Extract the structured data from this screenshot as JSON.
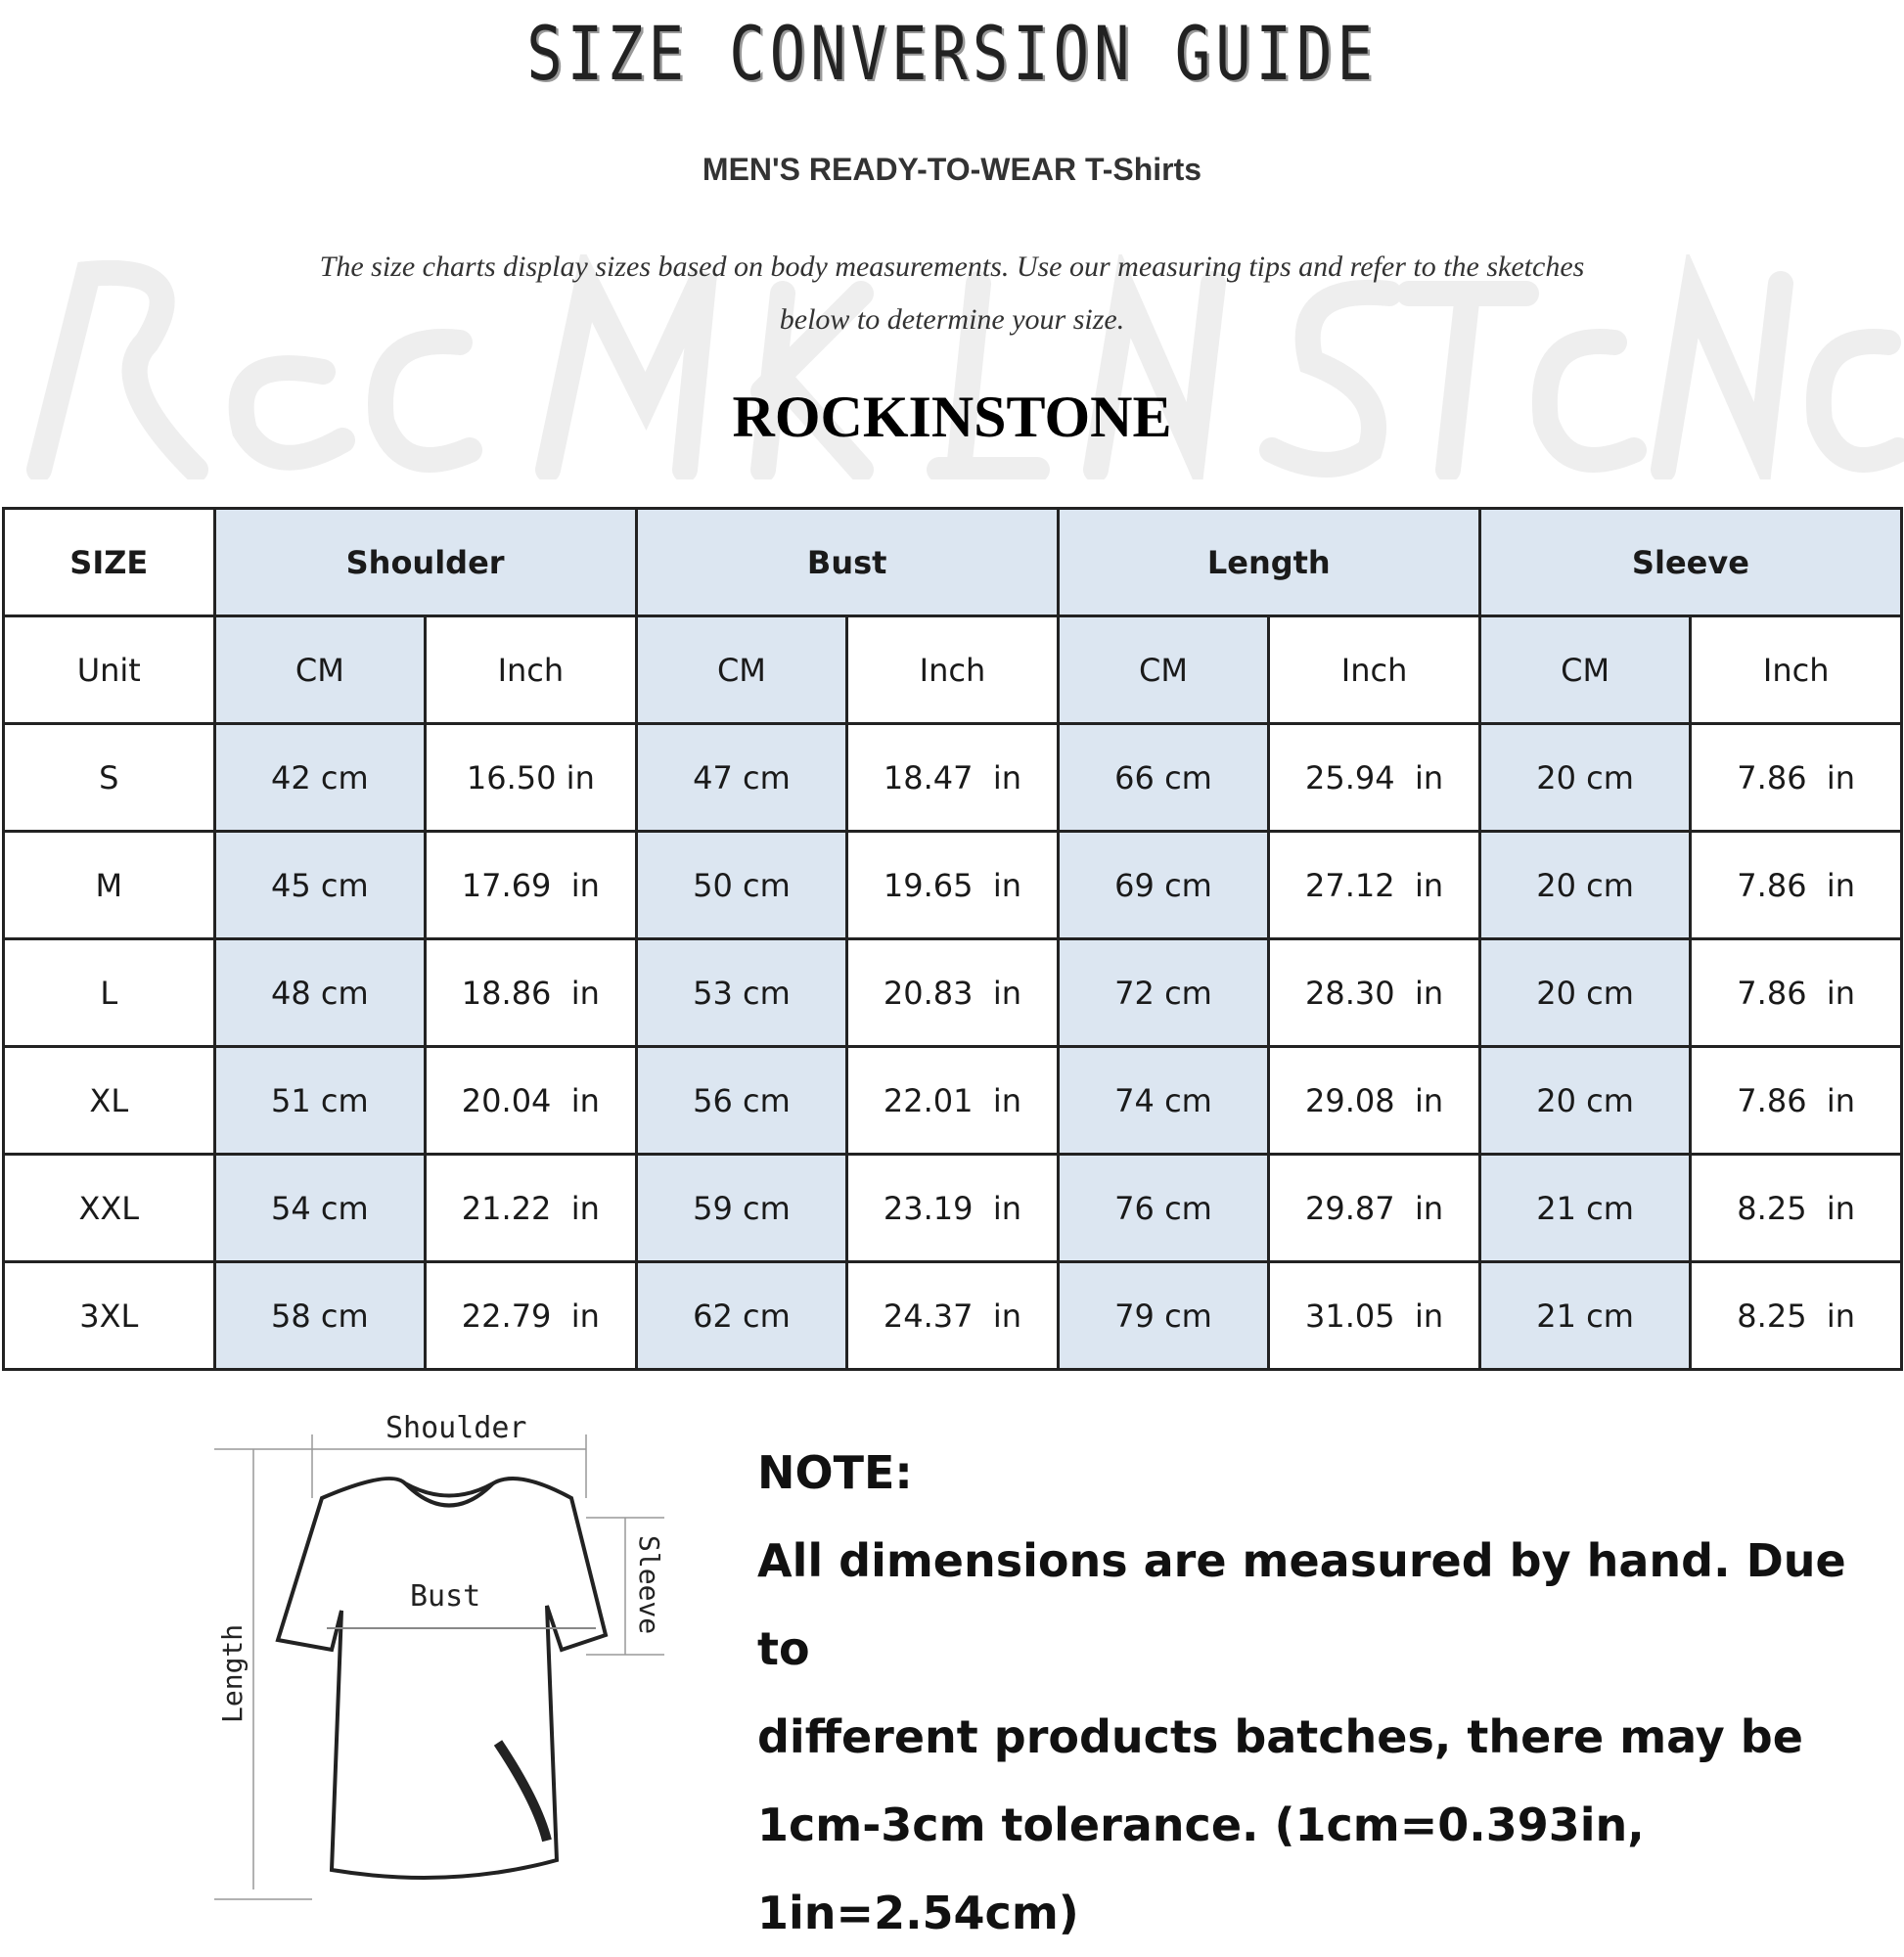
{
  "header": {
    "title": "SIZE CONVERSION GUIDE",
    "subtitle": "MEN'S READY-TO-WEAR T-Shirts",
    "description_line1": "The size charts display sizes based on body measurements. Use our measuring tips and refer to the sketches",
    "description_line2": "below to determine your size.",
    "brand": "ROCKINSTONE",
    "watermark": "RockInStone"
  },
  "table": {
    "header": [
      "SIZE",
      "Shoulder",
      "Bust",
      "Length",
      "Sleeve"
    ],
    "units": [
      "Unit",
      "CM",
      "Inch",
      "CM",
      "Inch",
      "CM",
      "Inch",
      "CM",
      "Inch"
    ],
    "rows": [
      [
        "S",
        "42 cm",
        "16.50 in",
        "47 cm",
        "18.47  in",
        "66 cm",
        "25.94  in",
        "20 cm",
        "7.86  in"
      ],
      [
        "M",
        "45 cm",
        "17.69  in",
        "50 cm",
        "19.65  in",
        "69 cm",
        "27.12  in",
        "20 cm",
        "7.86  in"
      ],
      [
        "L",
        "48 cm",
        "18.86  in",
        "53 cm",
        "20.83  in",
        "72 cm",
        "28.30  in",
        "20 cm",
        "7.86  in"
      ],
      [
        "XL",
        "51 cm",
        "20.04  in",
        "56 cm",
        "22.01  in",
        "74 cm",
        "29.08  in",
        "20 cm",
        "7.86  in"
      ],
      [
        "XXL",
        "54 cm",
        "21.22  in",
        "59 cm",
        "23.19  in",
        "76 cm",
        "29.87  in",
        "21 cm",
        "8.25  in"
      ],
      [
        "3XL",
        "58 cm",
        "22.79  in",
        "62 cm",
        "24.37  in",
        "79 cm",
        "31.05  in",
        "21 cm",
        "8.25  in"
      ]
    ],
    "header_fill": "#dce6f1"
  },
  "diagram": {
    "shoulder": "Shoulder",
    "bust": "Bust",
    "sleeve": "Sleeve",
    "length": "Length"
  },
  "note": {
    "heading": "NOTE:",
    "line1": "All dimensions are measured by hand. Due to",
    "line2": "different products batches, there may be",
    "line3": "1cm-3cm tolerance. (1cm=0.393in, 1in=2.54cm)"
  }
}
